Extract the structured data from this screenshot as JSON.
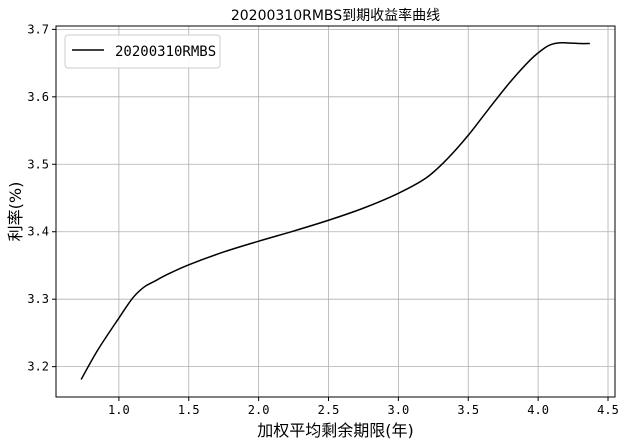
{
  "chart_data": {
    "type": "line",
    "title": "20200310RMBS到期收益率曲线",
    "xlabel": "加权平均剩余期限(年)",
    "ylabel": "利率(%)",
    "xlim": [
      0.55,
      4.55
    ],
    "ylim": [
      3.155,
      3.705
    ],
    "xticks": [
      1.0,
      1.5,
      2.0,
      2.5,
      3.0,
      3.5,
      4.0,
      4.5
    ],
    "xtick_labels": [
      "1.0",
      "1.5",
      "2.0",
      "2.5",
      "3.0",
      "3.5",
      "4.0",
      "4.5"
    ],
    "yticks": [
      3.2,
      3.3,
      3.4,
      3.5,
      3.6,
      3.7
    ],
    "ytick_labels": [
      "3.2",
      "3.3",
      "3.4",
      "3.5",
      "3.6",
      "3.7"
    ],
    "grid": true,
    "legend_position": "top-left",
    "series": [
      {
        "name": "20200310RMBS",
        "color": "#000000",
        "x": [
          0.73,
          0.85,
          1.0,
          1.1,
          1.18,
          1.25,
          1.35,
          1.5,
          1.75,
          2.0,
          2.25,
          2.5,
          2.75,
          3.0,
          3.2,
          3.35,
          3.5,
          3.65,
          3.8,
          3.95,
          4.05,
          4.1,
          4.15,
          4.2,
          4.3,
          4.37
        ],
        "y": [
          3.181,
          3.225,
          3.272,
          3.302,
          3.318,
          3.326,
          3.337,
          3.351,
          3.37,
          3.386,
          3.401,
          3.417,
          3.435,
          3.457,
          3.48,
          3.508,
          3.543,
          3.583,
          3.622,
          3.656,
          3.673,
          3.678,
          3.68,
          3.68,
          3.679,
          3.679
        ]
      }
    ]
  }
}
